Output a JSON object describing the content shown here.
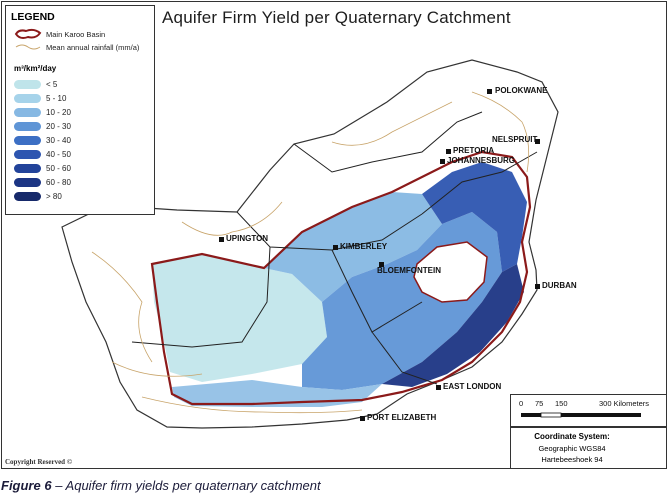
{
  "title": "Aquifer Firm Yield per Quaternary Catchment",
  "legend": {
    "heading": "LEGEND",
    "basin_label": "Main Karoo Basin",
    "rainfall_label": "Mean annual rainfall (mm/a)",
    "unit_label": "m³/km²/day",
    "classes": [
      {
        "label": "< 5",
        "color": "#bfe4ea"
      },
      {
        "label": "5 - 10",
        "color": "#a6d3ea"
      },
      {
        "label": "10 - 20",
        "color": "#86b8e3"
      },
      {
        "label": "20 - 30",
        "color": "#5f95d6"
      },
      {
        "label": "30 - 40",
        "color": "#3c6fc4"
      },
      {
        "label": "40 - 50",
        "color": "#2d55b0"
      },
      {
        "label": "50 - 60",
        "color": "#22439a"
      },
      {
        "label": "60 - 80",
        "color": "#1c3584"
      },
      {
        "label": "> 80",
        "color": "#16296a"
      }
    ],
    "basin_color": "#8b1a1a",
    "rainfall_color": "#c8a46a"
  },
  "cities": {
    "polokwane": "POLOKWANE",
    "nelspruit": "NELSPRUIT",
    "pretoria": "PRETORIA",
    "johannesburg": "JOHANNESBURG",
    "upington": "UPINGTON",
    "kimberley": "KIMBERLEY",
    "bloemfontein": "BLOEMFONTEIN",
    "durban": "DURBAN",
    "east_london": "EAST LONDON",
    "port_elizabeth": "PORT ELIZABETH"
  },
  "scale_bar": {
    "ticks": [
      "0",
      "75",
      "150",
      "300 Kilometers"
    ]
  },
  "coordinate_system": {
    "title": "Coordinate System:",
    "line1": "Geographic WGS84",
    "line2": "Hartebeeshoek 94"
  },
  "north_arrow_icon": "north-arrow-icon",
  "copyright": "Copyright Reserved ©",
  "caption": {
    "figure": "Figure 6",
    "text": " – Aquifer firm yields per quaternary catchment"
  }
}
